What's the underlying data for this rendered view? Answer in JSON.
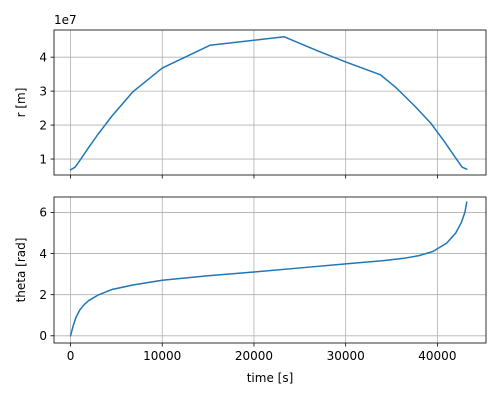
{
  "chart_data": [
    {
      "type": "line",
      "xlabel": "",
      "ylabel": "r [m]",
      "offset_text": "1e7",
      "xlim": [
        -1800,
        45300
      ],
      "ylim": [
        5300000,
        48000000
      ],
      "xticks": [
        0,
        10000,
        20000,
        30000,
        40000
      ],
      "yticks": [
        10000000,
        20000000,
        30000000,
        40000000
      ],
      "ytick_labels": [
        "1",
        "2",
        "3",
        "4"
      ],
      "show_xtick_labels": false,
      "grid": true,
      "color": "#1f77b4",
      "series": [
        {
          "x": [
            0,
            500,
            1000,
            2000,
            3000,
            4500,
            6800,
            10000,
            15200,
            23300,
            27000,
            30000,
            33800,
            35500,
            37500,
            39300,
            40800,
            42000,
            42700,
            43200
          ],
          "y": [
            6800000,
            7600000,
            9500000,
            13500000,
            17300000,
            22600000,
            29800000,
            36800000,
            43500000,
            46000000,
            41800000,
            38600000,
            34800000,
            31000000,
            25700000,
            20500000,
            15000000,
            10300000,
            7600000,
            7000000
          ]
        }
      ]
    },
    {
      "type": "line",
      "xlabel": "time [s]",
      "ylabel": "theta [rad]",
      "xlim": [
        -1800,
        45300
      ],
      "ylim": [
        -0.35,
        6.75
      ],
      "xticks": [
        0,
        10000,
        20000,
        30000,
        40000
      ],
      "xtick_labels": [
        "0",
        "10000",
        "20000",
        "30000",
        "40000"
      ],
      "yticks": [
        0,
        2,
        4,
        6
      ],
      "ytick_labels": [
        "0",
        "2",
        "4",
        "6"
      ],
      "show_xtick_labels": true,
      "grid": true,
      "color": "#1f77b4",
      "series": [
        {
          "x": [
            0,
            300,
            600,
            1000,
            1500,
            2000,
            3000,
            4500,
            6800,
            10000,
            15000,
            20000,
            25000,
            30000,
            34000,
            36500,
            38000,
            39500,
            41000,
            42000,
            42600,
            43000,
            43200
          ],
          "y": [
            0.0,
            0.5,
            0.9,
            1.25,
            1.52,
            1.72,
            1.98,
            2.25,
            2.47,
            2.7,
            2.92,
            3.1,
            3.3,
            3.5,
            3.65,
            3.78,
            3.9,
            4.1,
            4.5,
            5.0,
            5.5,
            6.0,
            6.5
          ]
        }
      ]
    }
  ]
}
